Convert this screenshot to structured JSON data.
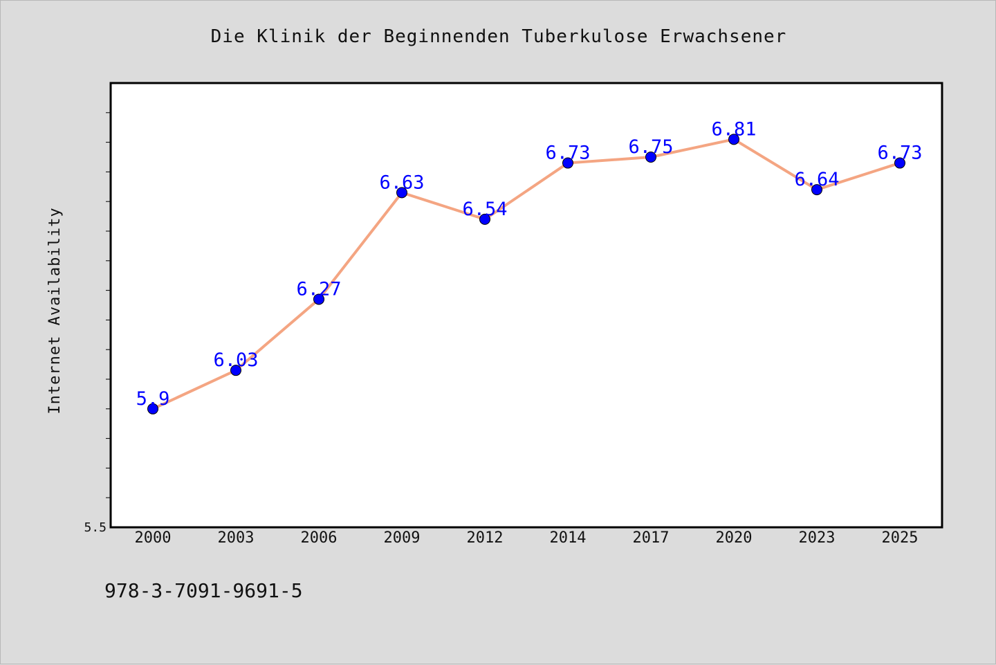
{
  "chart_data": {
    "type": "line",
    "title": "Die Klinik der Beginnenden Tuberkulose Erwachsener",
    "xlabel": "",
    "ylabel": "Internet Availability",
    "categories": [
      "2000",
      "2003",
      "2006",
      "2009",
      "2012",
      "2014",
      "2017",
      "2020",
      "2023",
      "2025"
    ],
    "series": [
      {
        "values": [
          5.9,
          6.03,
          6.27,
          6.63,
          6.54,
          6.73,
          6.75,
          6.81,
          6.64,
          6.73
        ],
        "value_labels": [
          "5.9",
          "6.03",
          "6.27",
          "6.63",
          "6.54",
          "6.73",
          "6.75",
          "6.81",
          "6.64",
          "6.73"
        ],
        "line_color": "#f4a582",
        "marker_color": "#0000ff",
        "label_color": "#0000ff"
      }
    ],
    "ylim": [
      5.5,
      7.0
    ],
    "y_tick_labels": [
      "5.5"
    ],
    "grid": false,
    "legend": "none"
  },
  "footer": {
    "isbn": "978-3-7091-9691-5"
  },
  "colors": {
    "background": "#dcdcdc",
    "plot_background": "#ffffff",
    "axis": "#000000"
  }
}
